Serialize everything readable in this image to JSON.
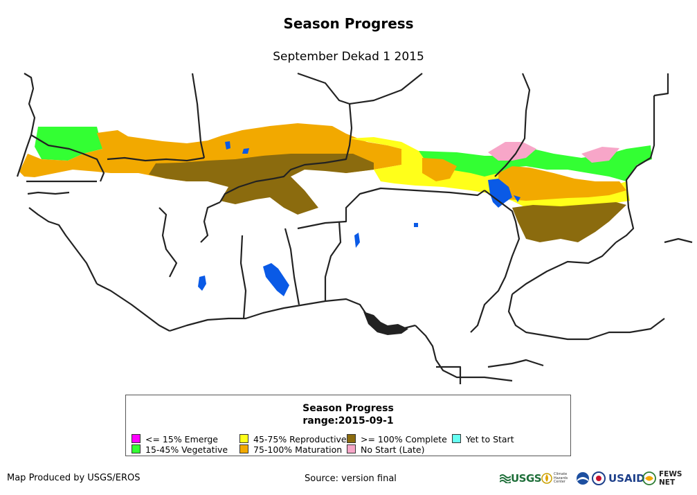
{
  "header": {
    "title": "Season Progress",
    "subtitle": "September Dekad 1 2015"
  },
  "legend": {
    "title": "Season Progress",
    "range": "range:2015-09-1",
    "items": [
      {
        "label": "<= 15% Emerge",
        "color": "#ff00ff"
      },
      {
        "label": "15-45% Vegetative",
        "color": "#33ff33"
      },
      {
        "label": "45-75% Reproductive",
        "color": "#ffff1a"
      },
      {
        "label": "75-100% Maturation",
        "color": "#f2a900"
      },
      {
        "label": ">= 100% Complete",
        "color": "#8b6b0e"
      },
      {
        "label": "No Start (Late)",
        "color": "#f7a6c8"
      },
      {
        "label": "Yet to Start",
        "color": "#66fff2"
      }
    ]
  },
  "map": {
    "water_color": "#0a5ae6",
    "border_color": "#222222"
  },
  "footer": {
    "producer": "Map Produced by USGS/EROS",
    "source": "Source: version final",
    "logos": {
      "usgs": "USGS",
      "chc": "Climate Hazards Center",
      "usaid": "USAID",
      "fews": "FEWS NET"
    }
  }
}
